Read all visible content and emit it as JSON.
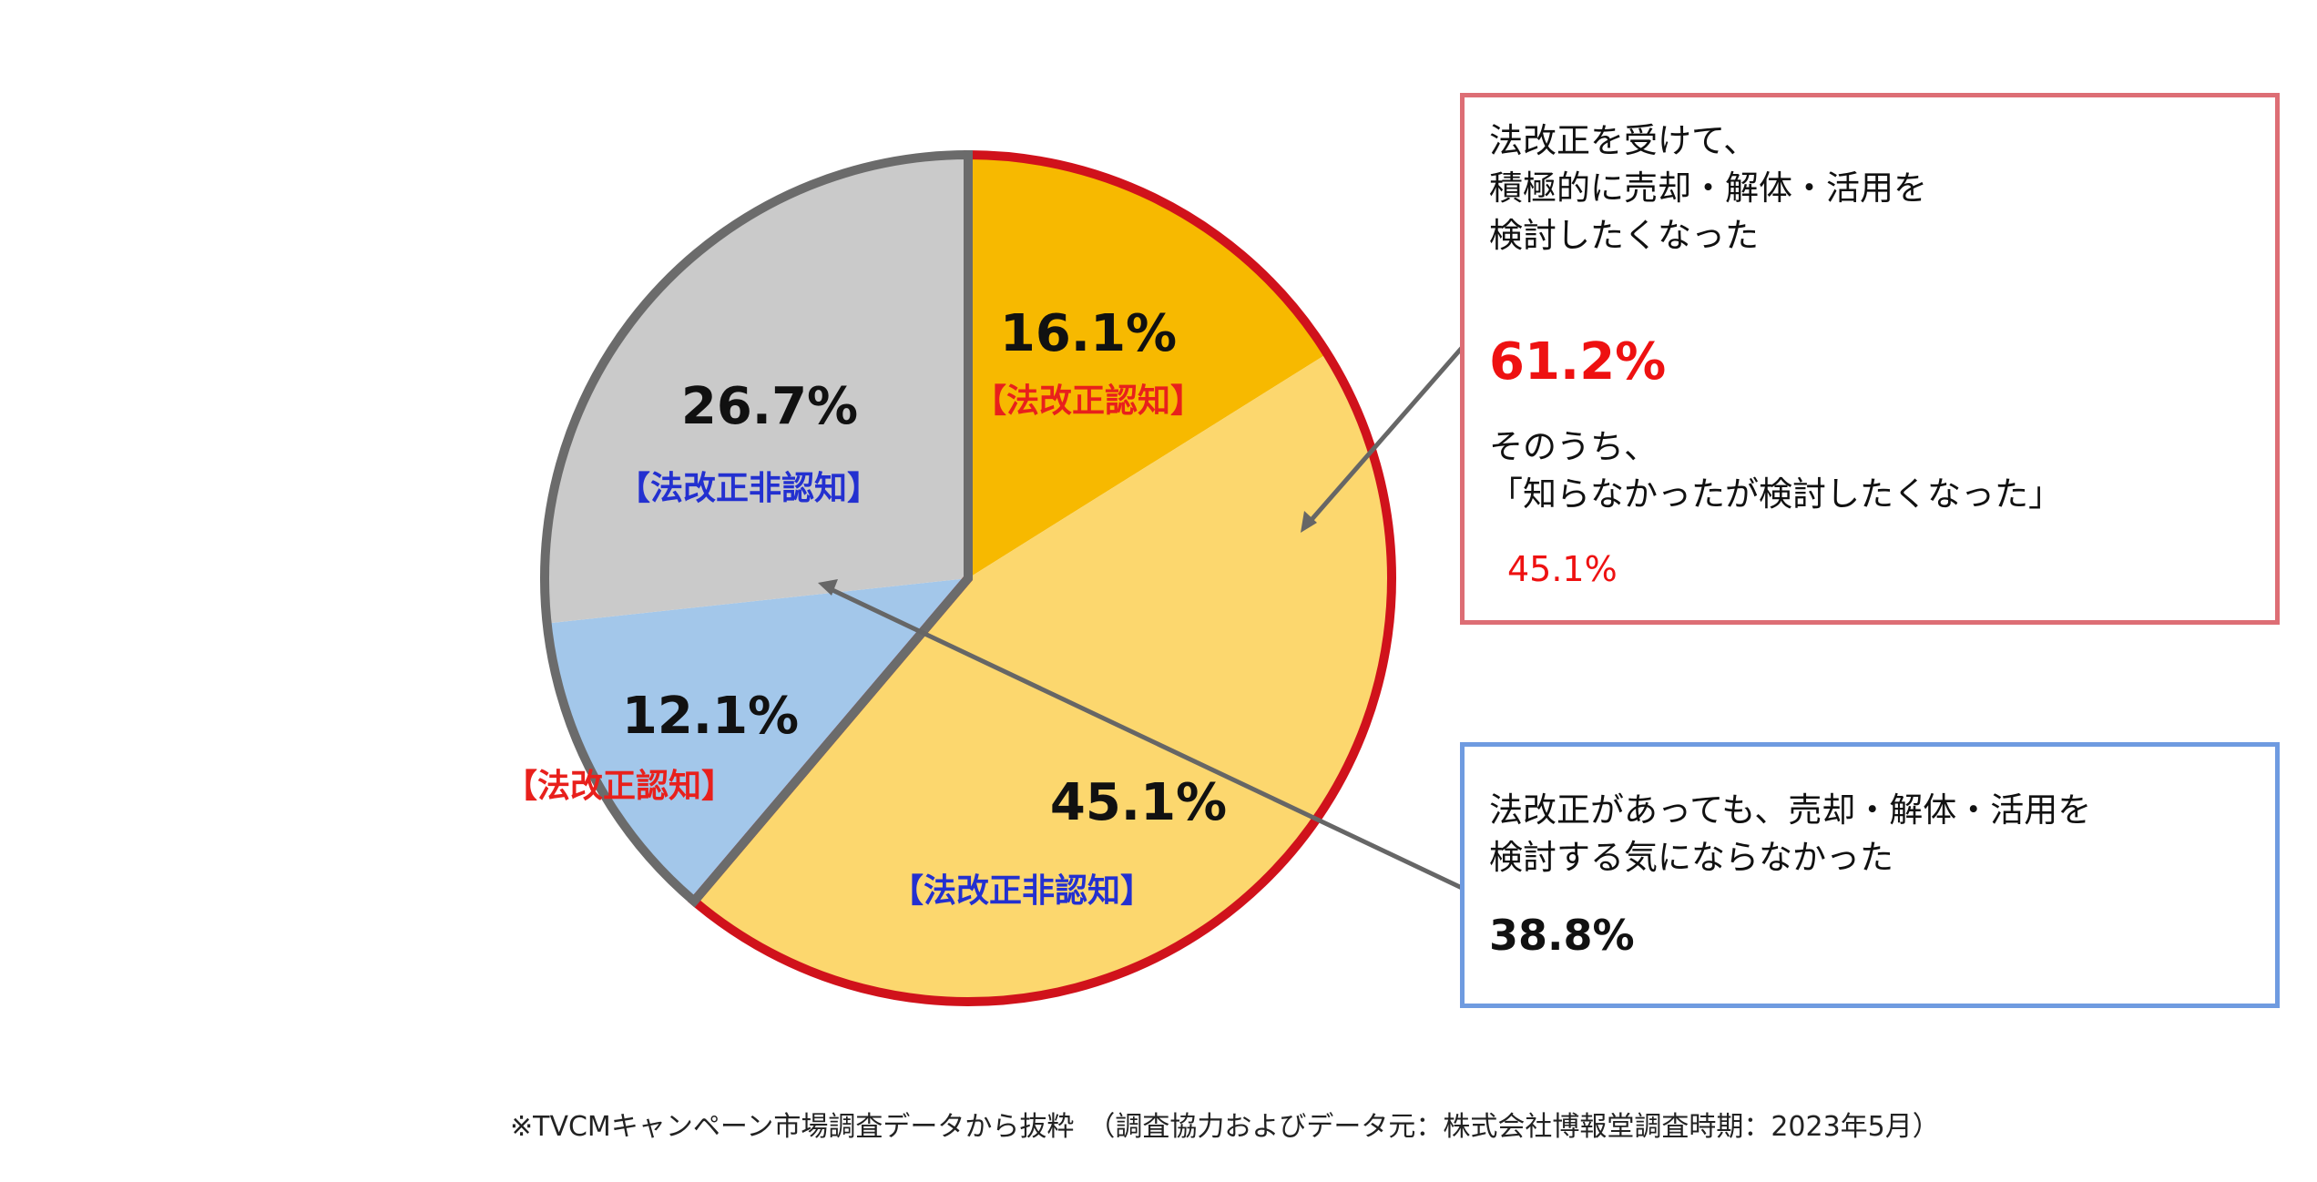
{
  "chart_data": {
    "type": "pie",
    "slices": [
      {
        "value": 16.1,
        "label": "16.1%",
        "sublabel": "【法改正認知】",
        "color": "#f7b900",
        "sublabel_color": "#e8201c",
        "group": "want"
      },
      {
        "value": 45.1,
        "label": "45.1%",
        "sublabel": "【法改正非認知】",
        "color": "#fcd76e",
        "sublabel_color": "#2330d0",
        "group": "want"
      },
      {
        "value": 12.1,
        "label": "12.1%",
        "sublabel": "【法改正認知】",
        "color": "#a3c7ea",
        "sublabel_color": "#e8201c",
        "group": "not"
      },
      {
        "value": 26.7,
        "label": "26.7%",
        "sublabel": "【法改正非認知】",
        "color": "#cacaca",
        "sublabel_color": "#2330d0",
        "group": "not"
      }
    ],
    "group_outline_colors": {
      "want": "#d0121b",
      "not": "#6b6b6b"
    }
  },
  "callouts": {
    "want": {
      "lines": [
        "法改正を受けて、",
        "積極的に売却・解体・活用を",
        "検討したくなった"
      ],
      "percent": "61.2%",
      "sub_lines": [
        "そのうち、",
        "「知らなかったが検討したくなった」"
      ],
      "sub_percent": "45.1%",
      "percent_color": "#ee1111",
      "border_color": "#dd6e75"
    },
    "not": {
      "lines": [
        "法改正があっても、売却・解体・活用を",
        "検討する気にならなかった"
      ],
      "percent": "38.8%",
      "border_color": "#6f9be0"
    }
  },
  "footnote": "※TVCMキャンペーン市場調査データから抜粋　（調査協力およびデータ元：株式会社博報堂調査時期：2023年5月）"
}
